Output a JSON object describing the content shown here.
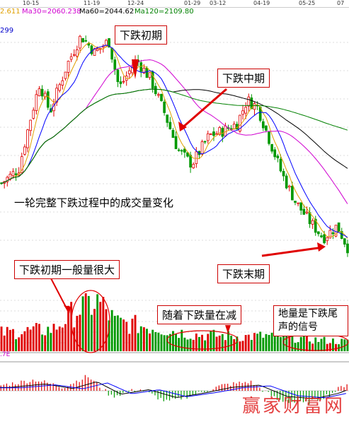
{
  "header": {
    "dates": [
      "10-15",
      "11-19",
      "12-24",
      "01-29",
      "03-12",
      "04-19",
      "05-25",
      "07"
    ],
    "ma_labels": [
      {
        "text": "2.611",
        "color": "#e0a000"
      },
      {
        "text": "Ma30=2060.238",
        "color": "#d000d0"
      },
      {
        "text": "Ma60=2044.62",
        "color": "#000000"
      },
      {
        "text": "Ma120=2109.80",
        "color": "#008000"
      }
    ],
    "sub_value": "299",
    "vol_axis_value": ".7E"
  },
  "annotations": {
    "early_stage": "下跌初期",
    "mid_stage": "下跌中期",
    "full_cycle": "一轮完整下跌过程中的成交量变化",
    "early_volume": "下跌初期一般量很大",
    "decreasing_volume": "随着下跌量在减",
    "late_stage": "下跌末期",
    "bottom_volume": "地量是下跌尾声的信号"
  },
  "watermark": "赢家财富网",
  "chart_data": [
    {
      "type": "candlestick",
      "title": "",
      "x_ticks": [
        "10-15",
        "11-19",
        "12-24",
        "01-29",
        "03-12",
        "04-19",
        "05-25"
      ],
      "series_labels": [
        "Ma30=2060.238",
        "Ma60=2044.62",
        "Ma120=2109.80"
      ],
      "price_path": [
        [
          0,
          0.3
        ],
        [
          0.05,
          0.36
        ],
        [
          0.08,
          0.55
        ],
        [
          0.11,
          0.72
        ],
        [
          0.14,
          0.6
        ],
        [
          0.19,
          0.8
        ],
        [
          0.23,
          0.92
        ],
        [
          0.27,
          0.85
        ],
        [
          0.31,
          0.9
        ],
        [
          0.34,
          0.7
        ],
        [
          0.39,
          0.82
        ],
        [
          0.43,
          0.74
        ],
        [
          0.47,
          0.6
        ],
        [
          0.51,
          0.44
        ],
        [
          0.55,
          0.38
        ],
        [
          0.6,
          0.5
        ],
        [
          0.64,
          0.52
        ],
        [
          0.68,
          0.55
        ],
        [
          0.71,
          0.65
        ],
        [
          0.74,
          0.62
        ],
        [
          0.77,
          0.5
        ],
        [
          0.81,
          0.34
        ],
        [
          0.85,
          0.22
        ],
        [
          0.89,
          0.14
        ],
        [
          0.93,
          0.07
        ],
        [
          0.97,
          0.12
        ],
        [
          1.0,
          0.03
        ]
      ]
    },
    {
      "type": "bar",
      "title": "volume",
      "profile": [
        [
          0,
          0.35
        ],
        [
          0.15,
          0.42
        ],
        [
          0.22,
          0.8
        ],
        [
          0.28,
          0.95
        ],
        [
          0.33,
          0.55
        ],
        [
          0.45,
          0.45
        ],
        [
          0.55,
          0.32
        ],
        [
          0.7,
          0.28
        ],
        [
          0.8,
          0.3
        ],
        [
          0.9,
          0.22
        ],
        [
          1.0,
          0.18
        ]
      ]
    },
    {
      "type": "bar",
      "title": "MACD",
      "profile": [
        [
          0,
          0.3
        ],
        [
          0.1,
          0.6
        ],
        [
          0.18,
          0.2
        ],
        [
          0.25,
          0.8
        ],
        [
          0.32,
          -0.3
        ],
        [
          0.4,
          0.1
        ],
        [
          0.48,
          -0.6
        ],
        [
          0.56,
          -0.2
        ],
        [
          0.64,
          0.3
        ],
        [
          0.72,
          0.5
        ],
        [
          0.8,
          -0.5
        ],
        [
          0.88,
          -0.7
        ],
        [
          0.95,
          -0.2
        ],
        [
          1.0,
          0.4
        ]
      ]
    }
  ]
}
